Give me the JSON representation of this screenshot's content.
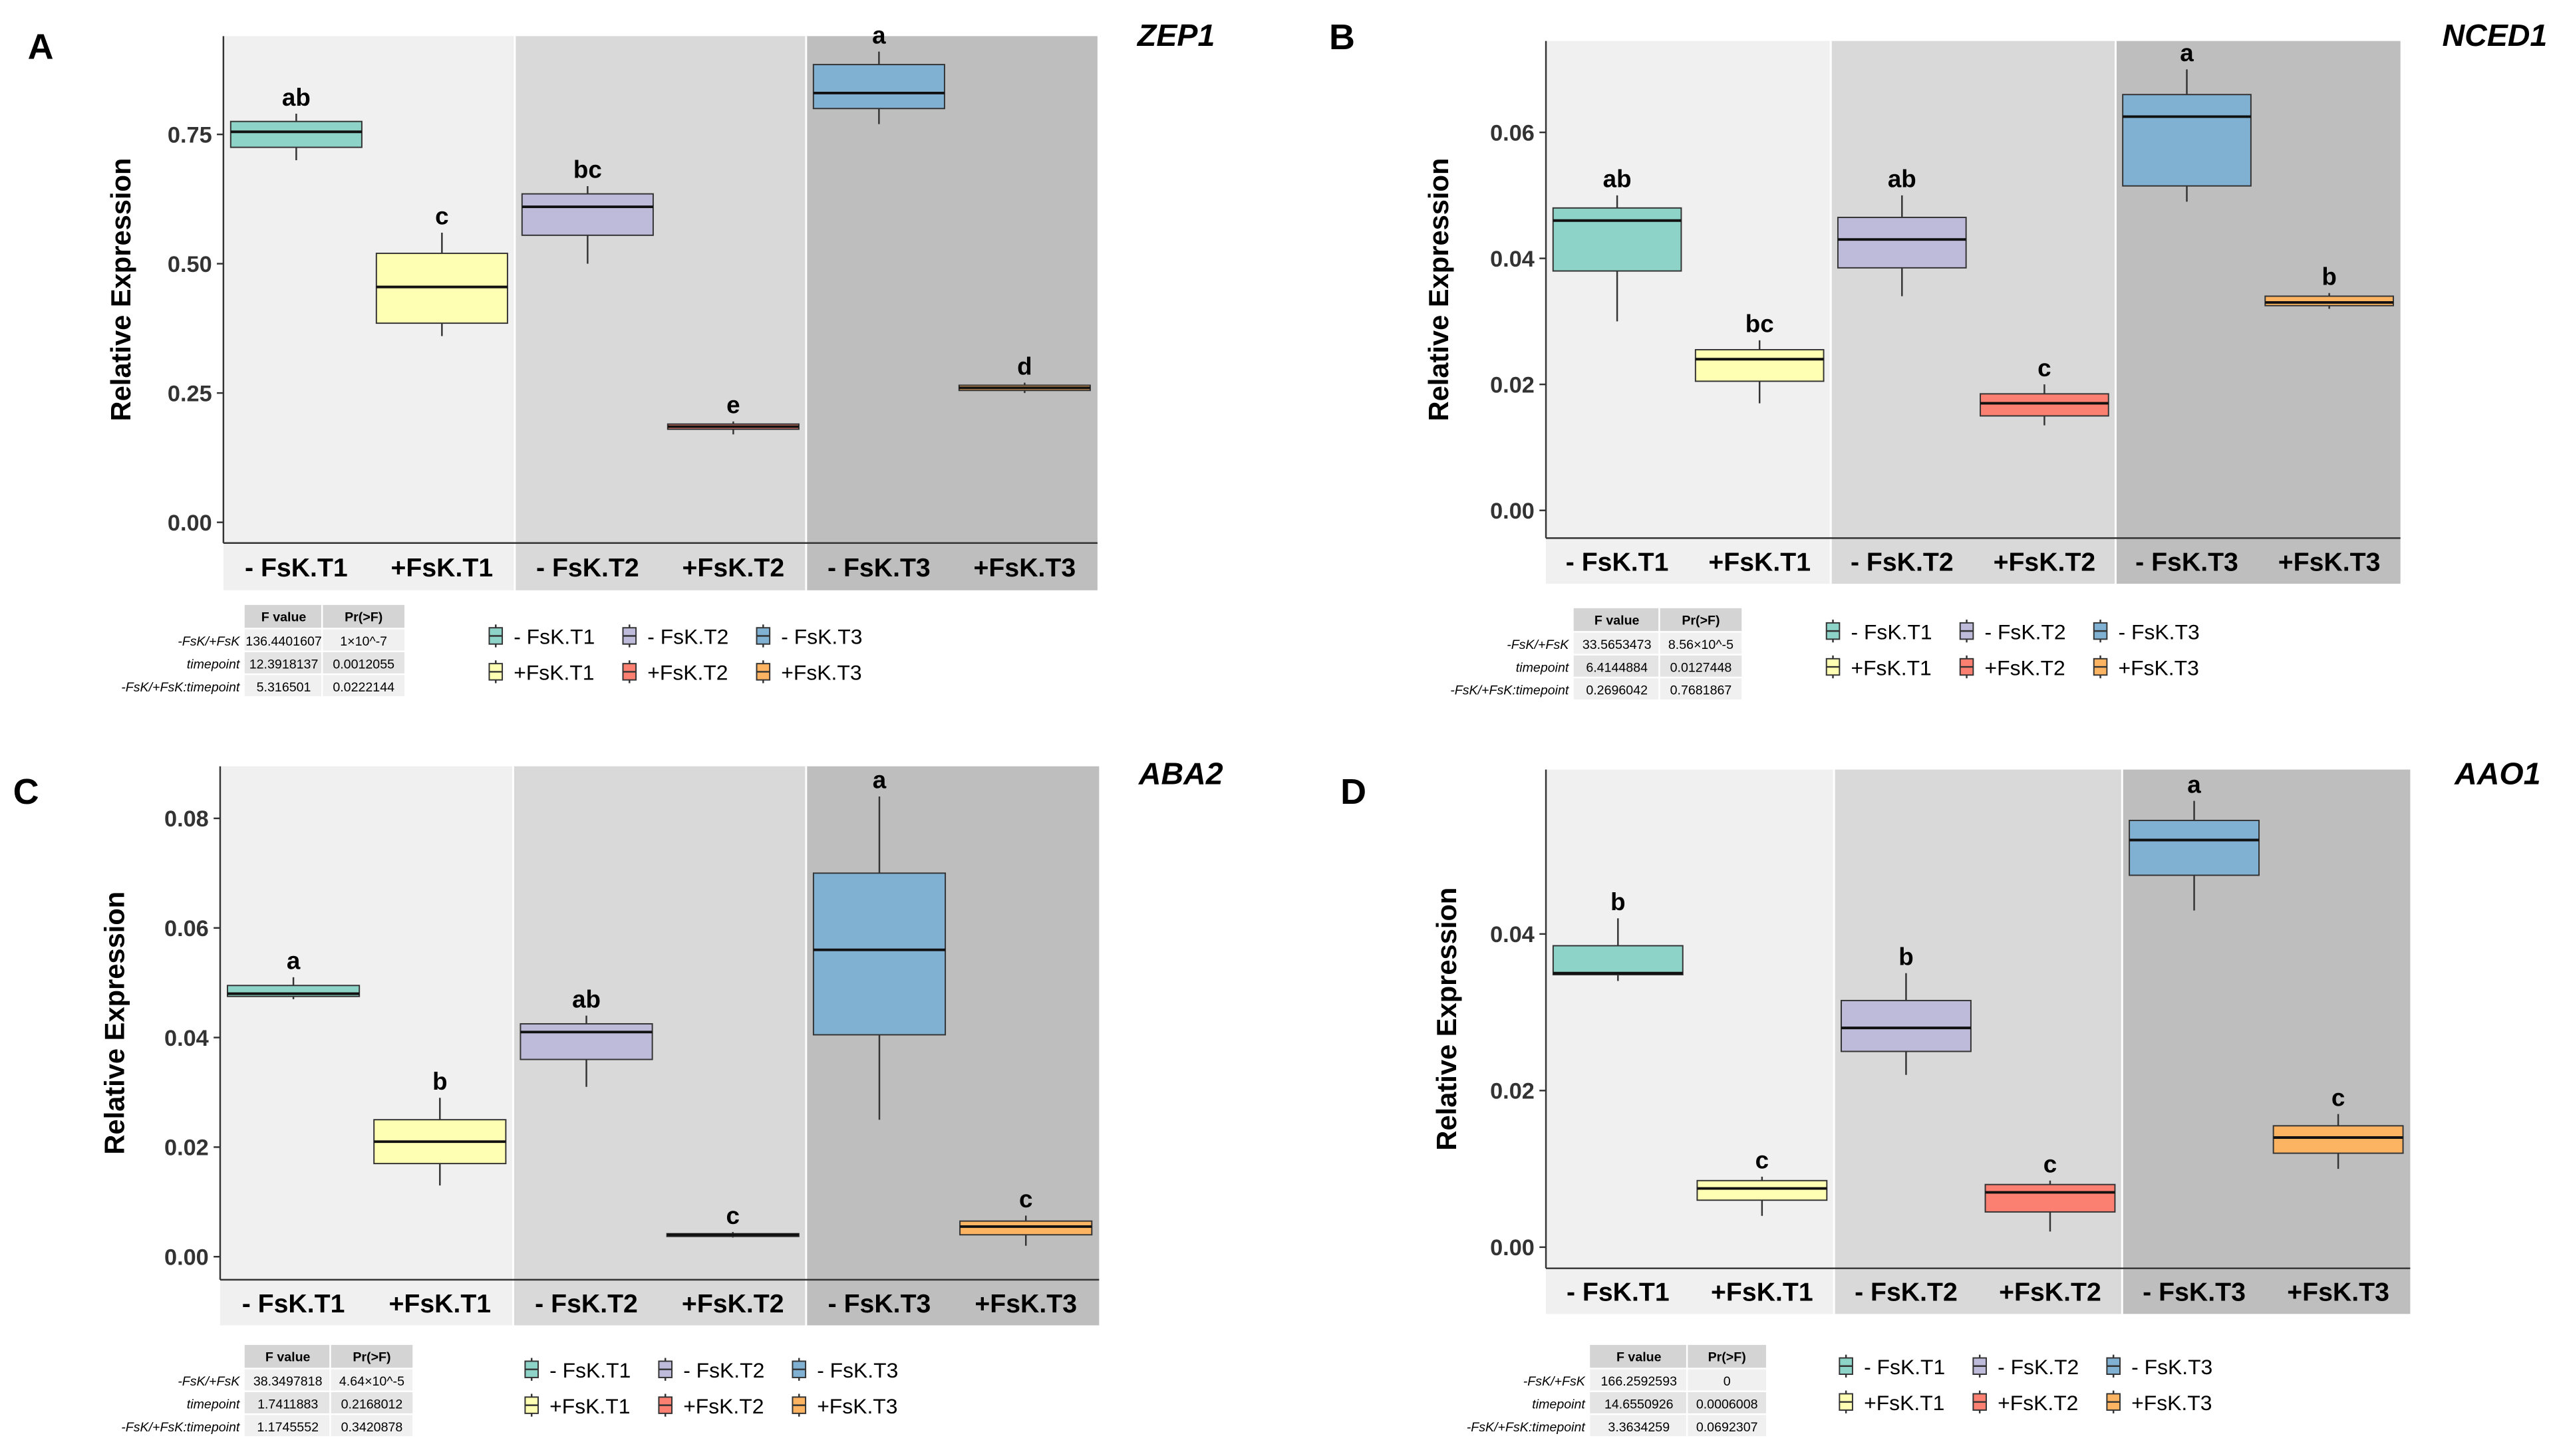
{
  "colors": {
    "-FsK.T1": "#8dd3c7",
    "+FsK.T1": "#ffffb3",
    "-FsK.T2": "#bebada",
    "+FsK.T2": "#fb8072",
    "-FsK.T3": "#80b1d3",
    "+FsK.T3": "#fdb462",
    "shade": [
      "#f0f0f0",
      "#d9d9d9",
      "#bebebe"
    ]
  },
  "legend": [
    "- FsK.T1",
    "- FsK.T2",
    "- FsK.T3",
    "+FsK.T1",
    "+FsK.T2",
    "+FsK.T3"
  ],
  "table_header": [
    "F value",
    "Pr(>F)"
  ],
  "chart_data": [
    {
      "type": "box",
      "panel": "A",
      "title": "ZEP1",
      "ylabel": "Relative Expression",
      "ylim": [
        -0.04,
        0.94
      ],
      "yticks": [
        "0.00",
        "0.25",
        "0.50",
        "0.75"
      ],
      "ytick_values": [
        0,
        0.25,
        0.5,
        0.75
      ],
      "categories": [
        "- FsK.T1",
        "+FsK.T1",
        "- FsK.T2",
        "+FsK.T2",
        "- FsK.T3",
        "+FsK.T3"
      ],
      "boxes": [
        {
          "min": 0.7,
          "q1": 0.725,
          "median": 0.755,
          "q3": 0.775,
          "max": 0.79,
          "letter": "ab"
        },
        {
          "min": 0.36,
          "q1": 0.385,
          "median": 0.455,
          "q3": 0.52,
          "max": 0.56,
          "letter": "c"
        },
        {
          "min": 0.5,
          "q1": 0.555,
          "median": 0.61,
          "q3": 0.635,
          "max": 0.65,
          "letter": "bc"
        },
        {
          "min": 0.17,
          "q1": 0.18,
          "median": 0.185,
          "q3": 0.19,
          "max": 0.195,
          "letter": "e"
        },
        {
          "min": 0.77,
          "q1": 0.8,
          "median": 0.83,
          "q3": 0.885,
          "max": 0.91,
          "letter": "a"
        },
        {
          "min": 0.25,
          "q1": 0.255,
          "median": 0.26,
          "q3": 0.265,
          "max": 0.27,
          "letter": "d"
        }
      ],
      "anova": [
        {
          "term": "-FsK/+FsK",
          "f": "136.4401607",
          "p": "1×10^-7"
        },
        {
          "term": "timepoint",
          "f": "12.3918137",
          "p": "0.0012055"
        },
        {
          "term": "-FsK/+FsK:timepoint",
          "f": "5.316501",
          "p": "0.0222144"
        }
      ]
    },
    {
      "type": "box",
      "panel": "B",
      "title": "NCED1",
      "ylabel": "Relative Expression",
      "ylim": [
        -0.0044,
        0.0745
      ],
      "yticks": [
        "0.00",
        "0.02",
        "0.04",
        "0.06"
      ],
      "ytick_values": [
        0,
        0.02,
        0.04,
        0.06
      ],
      "categories": [
        "- FsK.T1",
        "+FsK.T1",
        "- FsK.T2",
        "+FsK.T2",
        "- FsK.T3",
        "+FsK.T3"
      ],
      "boxes": [
        {
          "min": 0.03,
          "q1": 0.038,
          "median": 0.046,
          "q3": 0.048,
          "max": 0.05,
          "letter": "ab"
        },
        {
          "min": 0.017,
          "q1": 0.0205,
          "median": 0.024,
          "q3": 0.0255,
          "max": 0.027,
          "letter": "bc"
        },
        {
          "min": 0.034,
          "q1": 0.0385,
          "median": 0.043,
          "q3": 0.0465,
          "max": 0.05,
          "letter": "ab"
        },
        {
          "min": 0.0135,
          "q1": 0.015,
          "median": 0.017,
          "q3": 0.0185,
          "max": 0.02,
          "letter": "c"
        },
        {
          "min": 0.049,
          "q1": 0.0515,
          "median": 0.0625,
          "q3": 0.066,
          "max": 0.07,
          "letter": "a"
        },
        {
          "min": 0.032,
          "q1": 0.0325,
          "median": 0.033,
          "q3": 0.034,
          "max": 0.0345,
          "letter": "b"
        }
      ],
      "anova": [
        {
          "term": "-FsK/+FsK",
          "f": "33.5653473",
          "p": "8.56×10^-5"
        },
        {
          "term": "timepoint",
          "f": "6.4144884",
          "p": "0.0127448"
        },
        {
          "term": "-FsK/+FsK:timepoint",
          "f": "0.2696042",
          "p": "0.7681867"
        }
      ]
    },
    {
      "type": "box",
      "panel": "C",
      "title": "ABA2",
      "ylabel": "Relative Expression",
      "ylim": [
        -0.0042,
        0.0895
      ],
      "yticks": [
        "0.00",
        "0.02",
        "0.04",
        "0.06",
        "0.08"
      ],
      "ytick_values": [
        0,
        0.02,
        0.04,
        0.06,
        0.08
      ],
      "categories": [
        "- FsK.T1",
        "+FsK.T1",
        "- FsK.T2",
        "+FsK.T2",
        "- FsK.T3",
        "+FsK.T3"
      ],
      "boxes": [
        {
          "min": 0.047,
          "q1": 0.0475,
          "median": 0.048,
          "q3": 0.0495,
          "max": 0.051,
          "letter": "a"
        },
        {
          "min": 0.013,
          "q1": 0.017,
          "median": 0.021,
          "q3": 0.025,
          "max": 0.029,
          "letter": "b"
        },
        {
          "min": 0.031,
          "q1": 0.036,
          "median": 0.041,
          "q3": 0.0425,
          "max": 0.044,
          "letter": "ab"
        },
        {
          "min": 0.0035,
          "q1": 0.0037,
          "median": 0.004,
          "q3": 0.0042,
          "max": 0.0045,
          "letter": "c"
        },
        {
          "min": 0.025,
          "q1": 0.0405,
          "median": 0.056,
          "q3": 0.07,
          "max": 0.084,
          "letter": "a"
        },
        {
          "min": 0.002,
          "q1": 0.004,
          "median": 0.0055,
          "q3": 0.0065,
          "max": 0.0075,
          "letter": "c"
        }
      ],
      "anova": [
        {
          "term": "-FsK/+FsK",
          "f": "38.3497818",
          "p": "4.64×10^-5"
        },
        {
          "term": "timepoint",
          "f": "1.7411883",
          "p": "0.2168012"
        },
        {
          "term": "-FsK/+FsK:timepoint",
          "f": "1.1745552",
          "p": "0.3420878"
        }
      ]
    },
    {
      "type": "box",
      "panel": "D",
      "title": "AAO1",
      "ylabel": "Relative Expression",
      "ylim": [
        -0.0027,
        0.061
      ],
      "yticks": [
        "0.00",
        "0.02",
        "0.04"
      ],
      "ytick_values": [
        0,
        0.02,
        0.04
      ],
      "categories": [
        "- FsK.T1",
        "+FsK.T1",
        "- FsK.T2",
        "+FsK.T2",
        "- FsK.T3",
        "+FsK.T3"
      ],
      "boxes": [
        {
          "min": 0.034,
          "q1": 0.0348,
          "median": 0.035,
          "q3": 0.0385,
          "max": 0.042,
          "letter": "b"
        },
        {
          "min": 0.004,
          "q1": 0.006,
          "median": 0.0075,
          "q3": 0.0085,
          "max": 0.009,
          "letter": "c"
        },
        {
          "min": 0.022,
          "q1": 0.025,
          "median": 0.028,
          "q3": 0.0315,
          "max": 0.035,
          "letter": "b"
        },
        {
          "min": 0.002,
          "q1": 0.0045,
          "median": 0.007,
          "q3": 0.008,
          "max": 0.0085,
          "letter": "c"
        },
        {
          "min": 0.043,
          "q1": 0.0475,
          "median": 0.052,
          "q3": 0.0545,
          "max": 0.057,
          "letter": "a"
        },
        {
          "min": 0.01,
          "q1": 0.012,
          "median": 0.014,
          "q3": 0.0155,
          "max": 0.017,
          "letter": "c"
        }
      ],
      "anova": [
        {
          "term": "-FsK/+FsK",
          "f": "166.2592593",
          "p": "0"
        },
        {
          "term": "timepoint",
          "f": "14.6550926",
          "p": "0.0006008"
        },
        {
          "term": "-FsK/+FsK:timepoint",
          "f": "3.3634259",
          "p": "0.0692307"
        }
      ]
    }
  ]
}
